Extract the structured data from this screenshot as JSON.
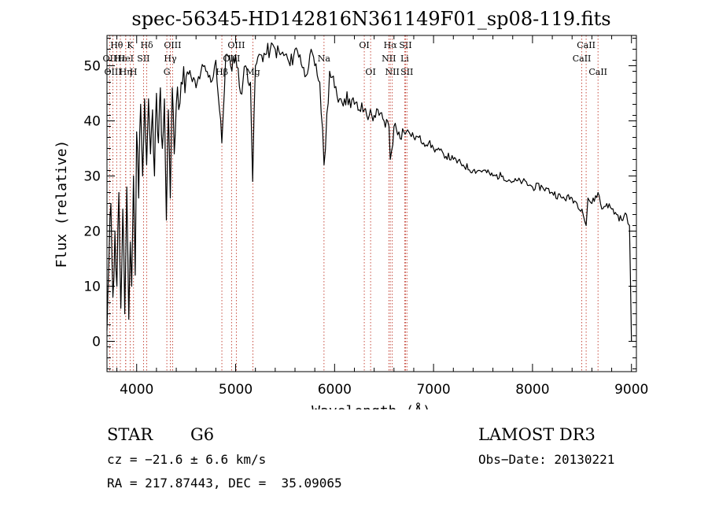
{
  "chart_data": {
    "type": "line",
    "title": "spec-56345-HD142816N361149F01_sp08-119.fits",
    "xlabel": "Wavelength (Å)",
    "ylabel": "Flux (relative)",
    "xlim": [
      3700,
      9050
    ],
    "ylim": [
      -5.5,
      55.5
    ],
    "xticks": [
      4000,
      5000,
      6000,
      7000,
      8000,
      9000
    ],
    "yticks": [
      0,
      10,
      20,
      30,
      40,
      50
    ],
    "series": [
      {
        "name": "spectrum",
        "x": [
          3700,
          3720,
          3740,
          3760,
          3780,
          3800,
          3820,
          3840,
          3860,
          3880,
          3900,
          3920,
          3935,
          3950,
          3968,
          3985,
          4000,
          4020,
          4040,
          4060,
          4080,
          4101,
          4120,
          4140,
          4160,
          4180,
          4200,
          4220,
          4240,
          4260,
          4280,
          4300,
          4320,
          4340,
          4360,
          4380,
          4400,
          4450,
          4500,
          4550,
          4600,
          4650,
          4700,
          4750,
          4800,
          4861,
          4900,
          4950,
          5000,
          5050,
          5100,
          5150,
          5172,
          5200,
          5250,
          5300,
          5350,
          5400,
          5450,
          5500,
          5550,
          5600,
          5650,
          5700,
          5750,
          5800,
          5850,
          5893,
          5950,
          6000,
          6050,
          6100,
          6150,
          6200,
          6250,
          6300,
          6350,
          6400,
          6450,
          6500,
          6550,
          6563,
          6600,
          6650,
          6700,
          6750,
          6800,
          6850,
          6900,
          6950,
          7000,
          7100,
          7200,
          7300,
          7400,
          7500,
          7600,
          7700,
          7800,
          7900,
          8000,
          8100,
          8200,
          8300,
          8400,
          8450,
          8500,
          8542,
          8560,
          8600,
          8662,
          8700,
          8750,
          8800,
          8850,
          8900,
          8950,
          8980,
          9000
        ],
        "y": [
          2,
          15,
          25,
          8,
          20,
          10,
          27,
          6,
          24,
          5,
          28,
          4,
          18,
          10,
          30,
          12,
          38,
          26,
          43,
          30,
          44,
          32,
          44,
          34,
          42,
          30,
          45,
          36,
          46,
          35,
          44,
          22,
          42,
          26,
          46,
          34,
          43,
          47,
          48,
          48,
          46,
          49,
          49,
          47,
          51,
          36,
          52,
          50,
          52,
          45,
          50,
          47,
          29,
          50,
          52,
          52,
          53,
          53,
          52,
          52,
          50,
          53,
          52,
          48,
          52,
          50,
          47,
          32,
          49,
          46,
          44,
          44,
          44,
          43,
          42,
          42,
          41,
          41,
          41,
          40,
          39,
          33,
          39,
          38,
          38,
          38,
          37,
          37,
          36,
          36,
          35,
          34,
          33,
          32,
          31,
          31,
          30,
          30,
          29,
          29,
          28,
          28,
          27,
          26,
          26,
          25,
          24,
          21,
          26,
          25,
          27,
          24,
          25,
          24,
          23,
          22,
          23,
          21,
          0
        ],
        "color": "#000000"
      }
    ],
    "lines": [
      {
        "label": "Hθ",
        "x": 3798,
        "row": 1
      },
      {
        "label": "OII",
        "x": 3727,
        "row": 2
      },
      {
        "label": "OIII",
        "x": 3760,
        "row": 3
      },
      {
        "label": "Hε",
        "x": 3835,
        "row": 2
      },
      {
        "label": "K",
        "x": 3934,
        "row": 1
      },
      {
        "label": "HeI",
        "x": 3889,
        "row": 2
      },
      {
        "label": "Hη",
        "x": 3889,
        "row": 3
      },
      {
        "label": "SII",
        "x": 4069,
        "row": 2
      },
      {
        "label": "H",
        "x": 3968,
        "row": 3
      },
      {
        "label": "Hδ",
        "x": 4102,
        "row": 1
      },
      {
        "label": "OIII",
        "x": 4363,
        "row": 1
      },
      {
        "label": "Hγ",
        "x": 4340,
        "row": 2
      },
      {
        "label": "G",
        "x": 4305,
        "row": 3
      },
      {
        "label": "OIII",
        "x": 5007,
        "row": 1
      },
      {
        "label": "OIII",
        "x": 4959,
        "row": 2
      },
      {
        "label": "Hβ",
        "x": 4861,
        "row": 3
      },
      {
        "label": "Mg",
        "x": 5175,
        "row": 3
      },
      {
        "label": "Na",
        "x": 5893,
        "row": 2
      },
      {
        "label": "OI",
        "x": 6300,
        "row": 1
      },
      {
        "label": "OI",
        "x": 6364,
        "row": 3
      },
      {
        "label": "Hα",
        "x": 6563,
        "row": 1
      },
      {
        "label": "NII",
        "x": 6548,
        "row": 2
      },
      {
        "label": "NII",
        "x": 6583,
        "row": 3
      },
      {
        "label": "SII",
        "x": 6717,
        "row": 1
      },
      {
        "label": "Li",
        "x": 6708,
        "row": 2
      },
      {
        "label": "SII",
        "x": 6731,
        "row": 3
      },
      {
        "label": "CaII",
        "x": 8542,
        "row": 1
      },
      {
        "label": "CaII",
        "x": 8498,
        "row": 2
      },
      {
        "label": "CaII",
        "x": 8662,
        "row": 3
      }
    ]
  },
  "info": {
    "obj_class": "STAR",
    "subclass": "G6",
    "survey": "LAMOST DR3",
    "redshift": "cz = −21.6 ± 6.6 km/s",
    "obs_date": "Obs−Date: 20130221",
    "coords": "RA = 217.87443, DEC =  35.09065"
  }
}
